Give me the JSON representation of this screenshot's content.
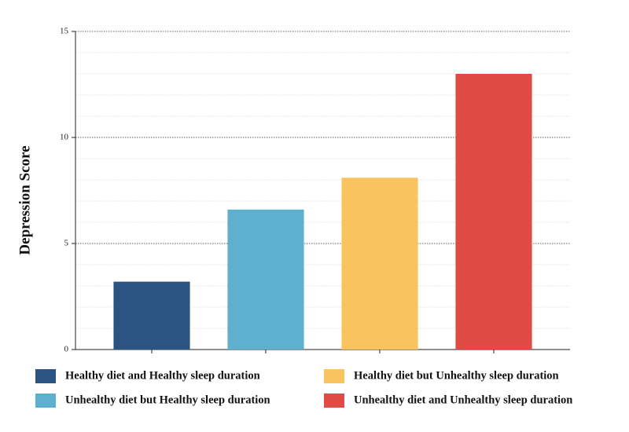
{
  "chart_data": {
    "type": "bar",
    "ylabel": "Depression Score",
    "series": [
      {
        "name": "Healthy diet and Healthy sleep duration",
        "color": "#2b5482",
        "values": [
          3.2
        ]
      },
      {
        "name": "Unhealthy diet but Healthy sleep duration",
        "color": "#5fb0cf",
        "values": [
          6.6
        ]
      },
      {
        "name": "Healthy diet but Unhealthy sleep duration",
        "color": "#f9c35f",
        "values": [
          8.1
        ]
      },
      {
        "name": "Unhealthy diet and Unhealthy sleep duration",
        "color": "#e04b45",
        "values": [
          13
        ]
      }
    ],
    "ylim": [
      0,
      15
    ],
    "yticks": [
      0,
      5,
      10,
      15
    ],
    "grid": true,
    "minor_grid_step": 1,
    "legend": "bottom"
  }
}
